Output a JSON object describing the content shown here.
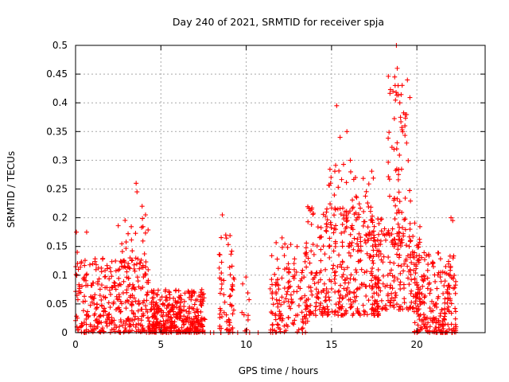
{
  "chart_data": {
    "type": "scatter",
    "title": "Day 240 of 2021, SRMTID for receiver spja",
    "xlabel": "GPS time / hours",
    "ylabel": "SRMTID / TECUs",
    "xlim": [
      0,
      24
    ],
    "ylim": [
      0,
      0.5
    ],
    "x_ticks": [
      0,
      5,
      10,
      15,
      20
    ],
    "x_tick_labels": [
      "0",
      "5",
      "10",
      "15",
      "20"
    ],
    "y_ticks": [
      0,
      0.05,
      0.1,
      0.15,
      0.2,
      0.25,
      0.3,
      0.35,
      0.4,
      0.45,
      0.5
    ],
    "y_tick_labels": [
      "0",
      "0.05",
      "0.1",
      "0.15",
      "0.2",
      "0.25",
      "0.3",
      "0.35",
      "0.4",
      "0.45",
      "0.5"
    ],
    "grid": true,
    "marker": "+",
    "color": "#ff0000",
    "series": [
      {
        "name": "SRMTID",
        "clusters": [
          {
            "x": [
              0.0,
              4.6
            ],
            "y": [
              0.0,
              0.13
            ],
            "n": 340
          },
          {
            "x": [
              2.5,
              4.3
            ],
            "y": [
              0.05,
              0.2
            ],
            "n": 55
          },
          {
            "x": [
              4.5,
              7.6
            ],
            "y": [
              0.0,
              0.075
            ],
            "n": 340
          },
          {
            "x": [
              8.4,
              9.3
            ],
            "y": [
              0.0,
              0.17
            ],
            "n": 60
          },
          {
            "x": [
              9.7,
              10.2
            ],
            "y": [
              0.0,
              0.1
            ],
            "n": 10
          },
          {
            "x": [
              11.4,
              13.6
            ],
            "y": [
              0.0,
              0.16
            ],
            "n": 140
          },
          {
            "x": [
              13.5,
              17.8
            ],
            "y": [
              0.03,
              0.22
            ],
            "n": 330
          },
          {
            "x": [
              14.8,
              17.6
            ],
            "y": [
              0.15,
              0.3
            ],
            "n": 60
          },
          {
            "x": [
              17.3,
              20.2
            ],
            "y": [
              0.04,
              0.2
            ],
            "n": 200
          },
          {
            "x": [
              18.3,
              19.7
            ],
            "y": [
              0.15,
              0.45
            ],
            "n": 75
          },
          {
            "x": [
              19.8,
              22.3
            ],
            "y": [
              0.0,
              0.14
            ],
            "n": 230
          }
        ],
        "points": [
          [
            0.05,
            0.175
          ],
          [
            0.1,
            0.14
          ],
          [
            0.65,
            0.175
          ],
          [
            3.55,
            0.26
          ],
          [
            3.6,
            0.245
          ],
          [
            3.9,
            0.22
          ],
          [
            4.1,
            0.205
          ],
          [
            8.6,
            0.205
          ],
          [
            8.8,
            0.17
          ],
          [
            12.1,
            0.165
          ],
          [
            15.3,
            0.395
          ],
          [
            15.5,
            0.34
          ],
          [
            15.9,
            0.35
          ],
          [
            16.1,
            0.3
          ],
          [
            16.4,
            0.27
          ],
          [
            18.8,
            0.5
          ],
          [
            18.85,
            0.46
          ],
          [
            18.7,
            0.445
          ],
          [
            18.9,
            0.43
          ],
          [
            18.6,
            0.42
          ],
          [
            19.0,
            0.4
          ],
          [
            19.3,
            0.36
          ],
          [
            19.4,
            0.33
          ],
          [
            22.0,
            0.2
          ],
          [
            22.1,
            0.195
          ],
          [
            7.9,
            0.0
          ],
          [
            8.1,
            0.0
          ],
          [
            8.5,
            0.0
          ],
          [
            9.5,
            0.0
          ],
          [
            10.0,
            0.0
          ],
          [
            10.2,
            0.0
          ],
          [
            10.7,
            0.0
          ],
          [
            13.3,
            0.0
          ]
        ]
      }
    ]
  }
}
